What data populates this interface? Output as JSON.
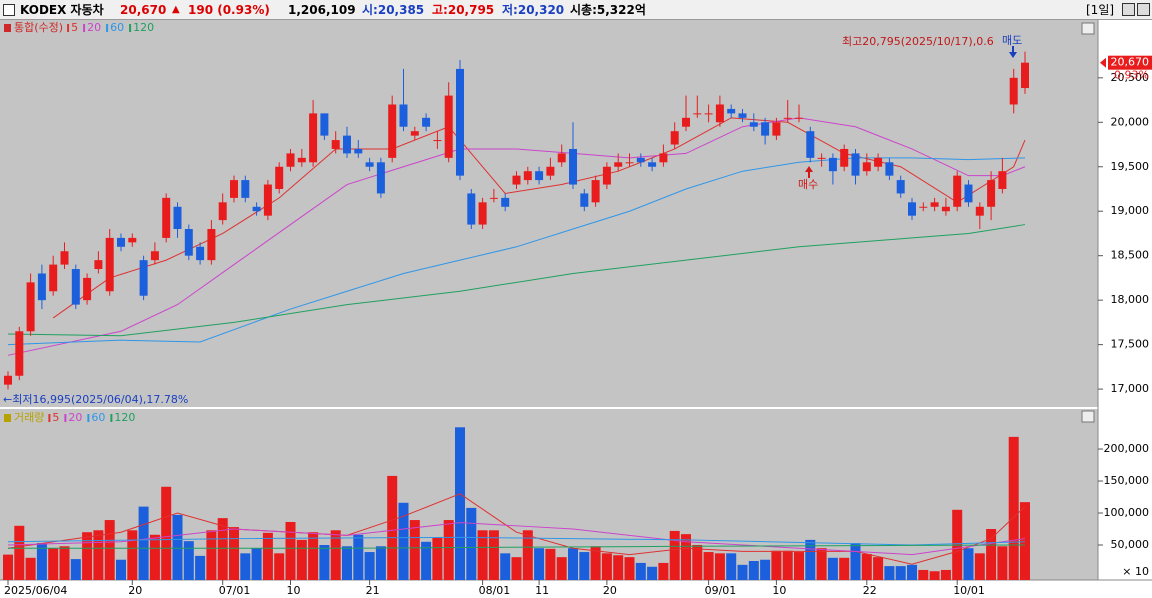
{
  "header": {
    "name": "KODEX 자동차",
    "price": "20,670",
    "arrow": "▲",
    "change": "190 (0.93%)",
    "volume": "1,206,109",
    "open": "시:20,385",
    "high": "고:20,795",
    "low": "저:20,320",
    "cap": "시총:5,322억",
    "period": "[1일]"
  },
  "chart_data": [
    {
      "type": "candlestick",
      "legend_title": "통합(수정)",
      "categories": [
        "2025/06/04",
        null,
        null,
        null,
        null,
        null,
        null,
        null,
        null,
        null,
        null,
        "20",
        null,
        null,
        null,
        null,
        null,
        null,
        null,
        "07/01",
        null,
        null,
        null,
        null,
        null,
        "10",
        null,
        null,
        null,
        null,
        null,
        null,
        "21",
        null,
        null,
        null,
        null,
        null,
        null,
        null,
        null,
        null,
        "08/01",
        null,
        null,
        null,
        null,
        "11",
        null,
        null,
        null,
        null,
        null,
        "20",
        null,
        null,
        null,
        null,
        null,
        null,
        null,
        null,
        "09/01",
        null,
        null,
        null,
        null,
        null,
        "10",
        null,
        null,
        null,
        null,
        null,
        null,
        null,
        "22",
        null,
        null,
        null,
        null,
        null,
        null,
        null,
        "10/01",
        null,
        null,
        null,
        null,
        null,
        null
      ],
      "open": [
        17050,
        17150,
        17650,
        18300,
        18100,
        18400,
        18350,
        18000,
        18350,
        18100,
        18700,
        18650,
        18450,
        18450,
        18700,
        19050,
        18800,
        18600,
        18450,
        18900,
        19150,
        19350,
        19050,
        18950,
        19250,
        19500,
        19550,
        19550,
        20100,
        19700,
        19850,
        19700,
        19550,
        19550,
        19600,
        20200,
        19850,
        20050,
        19800,
        19600,
        20600,
        19200,
        18850,
        19150,
        19150,
        19300,
        19350,
        19450,
        19400,
        19550,
        19700,
        19200,
        19100,
        19300,
        19500,
        19550,
        19600,
        19550,
        19550,
        19750,
        19950,
        20100,
        20100,
        20000,
        20150,
        20100,
        20000,
        20000,
        19850,
        20050,
        20050,
        19900,
        19600,
        19600,
        19500,
        19650,
        19450,
        19500,
        19550,
        19350,
        19100,
        19050,
        19050,
        19000,
        19050,
        19300,
        18950,
        19050,
        19250,
        20200,
        20385
      ],
      "high": [
        17200,
        17700,
        18300,
        18400,
        18500,
        18650,
        18400,
        18300,
        18550,
        18800,
        18750,
        18750,
        18500,
        18650,
        19200,
        19100,
        18850,
        18650,
        18900,
        19200,
        19400,
        19400,
        19100,
        19350,
        19550,
        19700,
        19700,
        20250,
        20100,
        19900,
        19950,
        19800,
        19600,
        19600,
        20300,
        20600,
        19950,
        20100,
        19900,
        20450,
        20700,
        19250,
        19150,
        19250,
        19200,
        19450,
        19500,
        19500,
        19600,
        19750,
        20000,
        19250,
        19400,
        19550,
        19650,
        19650,
        19650,
        19600,
        19750,
        20000,
        20300,
        20300,
        20200,
        20300,
        20200,
        20150,
        20100,
        20050,
        20050,
        20250,
        20200,
        19950,
        19650,
        19650,
        19750,
        19700,
        19650,
        19650,
        19600,
        19400,
        19150,
        19100,
        19150,
        19150,
        19450,
        19350,
        19100,
        19450,
        19600,
        20600,
        20795
      ],
      "low": [
        16995,
        17100,
        17600,
        17900,
        18050,
        18350,
        17900,
        17950,
        18300,
        18050,
        18550,
        18600,
        18000,
        18400,
        18650,
        18700,
        18450,
        18400,
        18400,
        18850,
        19100,
        19100,
        18950,
        18900,
        19200,
        19450,
        19500,
        19500,
        19800,
        19650,
        19600,
        19600,
        19450,
        19150,
        19550,
        19900,
        19800,
        19900,
        19700,
        19550,
        19350,
        18800,
        18800,
        19100,
        19000,
        19250,
        19300,
        19300,
        19350,
        19500,
        19250,
        19000,
        19050,
        19250,
        19450,
        19500,
        19500,
        19450,
        19500,
        19700,
        19900,
        20050,
        20000,
        19950,
        20050,
        20000,
        19900,
        19750,
        19800,
        20000,
        20000,
        19550,
        19500,
        19300,
        19450,
        19300,
        19400,
        19450,
        19350,
        19150,
        18900,
        19000,
        19000,
        18950,
        19000,
        19050,
        18800,
        18900,
        19200,
        20100,
        20320
      ],
      "close": [
        17150,
        17650,
        18200,
        18000,
        18400,
        18550,
        17950,
        18250,
        18450,
        18700,
        18600,
        18700,
        18050,
        18550,
        19150,
        18800,
        18500,
        18450,
        18800,
        19100,
        19350,
        19150,
        19000,
        19300,
        19500,
        19650,
        19600,
        20100,
        19850,
        19800,
        19650,
        19650,
        19500,
        19200,
        20200,
        19950,
        19900,
        19950,
        19800,
        20300,
        19400,
        18850,
        19100,
        19150,
        19050,
        19400,
        19450,
        19350,
        19500,
        19650,
        19300,
        19050,
        19350,
        19500,
        19550,
        19550,
        19550,
        19500,
        19650,
        19900,
        20050,
        20100,
        20100,
        20200,
        20100,
        20050,
        19950,
        19850,
        20000,
        20050,
        20050,
        19600,
        19600,
        19450,
        19700,
        19400,
        19550,
        19600,
        19400,
        19200,
        18950,
        19050,
        19100,
        19050,
        19400,
        19100,
        19050,
        19350,
        19450,
        20500,
        20670
      ],
      "up_color": "#e81c1c",
      "down_color": "#1c5fdc",
      "ylim": [
        16810,
        21150
      ],
      "yticks": [
        {
          "value": 17000,
          "label": "17,000"
        },
        {
          "value": 17500,
          "label": "17,500"
        },
        {
          "value": 18000,
          "label": "18,000"
        },
        {
          "value": 18500,
          "label": "18,500"
        },
        {
          "value": 19000,
          "label": "19,000"
        },
        {
          "value": 19500,
          "label": "19,500"
        },
        {
          "value": 20000,
          "label": "20,000"
        },
        {
          "value": 20500,
          "label": "20,500"
        }
      ],
      "moving_averages": [
        {
          "name": "5",
          "color": "#e03030",
          "x": [
            4,
            9,
            14,
            19,
            24,
            29,
            34,
            39,
            44,
            49,
            54,
            59,
            64,
            69,
            74,
            79,
            84,
            89,
            90
          ],
          "values": [
            17800,
            18250,
            18450,
            18750,
            19150,
            19700,
            19700,
            19950,
            19200,
            19300,
            19450,
            19700,
            20050,
            20000,
            19650,
            19500,
            19100,
            19500,
            19800
          ]
        },
        {
          "name": "20",
          "color": "#cc44cc",
          "x": [
            0,
            10,
            15,
            20,
            25,
            30,
            35,
            40,
            45,
            50,
            55,
            60,
            65,
            70,
            75,
            80,
            85,
            88,
            90
          ],
          "values": [
            17380,
            17650,
            17950,
            18400,
            18850,
            19300,
            19500,
            19700,
            19700,
            19650,
            19600,
            19650,
            19950,
            20050,
            19950,
            19700,
            19400,
            19400,
            19500
          ]
        },
        {
          "name": "60",
          "color": "#2f96e8",
          "x": [
            0,
            10,
            17,
            25,
            30,
            35,
            40,
            45,
            50,
            55,
            60,
            65,
            70,
            75,
            80,
            85,
            90
          ],
          "values": [
            17500,
            17550,
            17530,
            17900,
            18100,
            18300,
            18450,
            18600,
            18800,
            19000,
            19250,
            19450,
            19550,
            19600,
            19600,
            19580,
            19600
          ]
        },
        {
          "name": "120",
          "color": "#1fa060",
          "x": [
            0,
            10,
            20,
            30,
            40,
            50,
            60,
            70,
            80,
            85,
            90
          ],
          "values": [
            17620,
            17600,
            17750,
            17950,
            18100,
            18300,
            18450,
            18600,
            18700,
            18750,
            18850
          ]
        }
      ],
      "annotations": {
        "high": "최고20,795(2025/10/17),0.6",
        "low": "←최저16,995(2025/06/04),17.78%",
        "buy": "매수",
        "sell": "매도"
      },
      "last_price_label": "20,670",
      "last_change_label": "0.93%"
    },
    {
      "type": "bar",
      "legend_title": "거래량",
      "values": [
        35000,
        80000,
        30000,
        53000,
        45000,
        48000,
        28000,
        70000,
        73000,
        89000,
        27000,
        73000,
        110000,
        66000,
        141000,
        97000,
        56000,
        33000,
        73000,
        92000,
        78000,
        37000,
        45000,
        69000,
        37000,
        86000,
        58000,
        70000,
        50000,
        73000,
        48000,
        66000,
        39000,
        48000,
        158000,
        116000,
        89000,
        55000,
        61000,
        89000,
        234000,
        108000,
        73000,
        73000,
        37000,
        31000,
        73000,
        45000,
        44000,
        31000,
        45000,
        39000,
        48000,
        37000,
        34000,
        31000,
        22000,
        16000,
        22000,
        72000,
        67000,
        50000,
        39000,
        37000,
        37000,
        19000,
        25000,
        27000,
        41000,
        41000,
        39000,
        58000,
        45000,
        30000,
        30000,
        53000,
        36000,
        31000,
        17000,
        17000,
        19000,
        11000,
        9000,
        11000,
        105000,
        45000,
        37000,
        75000,
        48000,
        219000,
        117000
      ],
      "ylim": [
        0,
        261000
      ],
      "yticks": [
        {
          "value": 50000,
          "label": "50,000"
        },
        {
          "value": 100000,
          "label": "100,000"
        },
        {
          "value": 150000,
          "label": "150,000"
        },
        {
          "value": 200000,
          "label": "200,000"
        }
      ],
      "unit_label": "× 10",
      "moving_averages": [
        {
          "name": "5",
          "color": "#e03030",
          "x": [
            0,
            10,
            15,
            20,
            30,
            35,
            40,
            45,
            50,
            55,
            60,
            65,
            70,
            75,
            80,
            84,
            87,
            90
          ],
          "values": [
            45000,
            70000,
            100000,
            75000,
            65000,
            95000,
            130000,
            70000,
            45000,
            35000,
            45000,
            40000,
            40000,
            40000,
            20000,
            40000,
            60000,
            110000
          ]
        },
        {
          "name": "20",
          "color": "#cc44cc",
          "x": [
            0,
            10,
            20,
            30,
            40,
            45,
            50,
            60,
            70,
            80,
            90
          ],
          "values": [
            50000,
            55000,
            75000,
            65000,
            85000,
            80000,
            75000,
            55000,
            45000,
            35000,
            60000
          ]
        },
        {
          "name": "60",
          "color": "#2f96e8",
          "x": [
            0,
            20,
            40,
            60,
            80,
            90
          ],
          "values": [
            55000,
            60000,
            62000,
            58000,
            50000,
            55000
          ]
        },
        {
          "name": "120",
          "color": "#1fa060",
          "x": [
            0,
            30,
            60,
            90
          ],
          "values": [
            45000,
            45000,
            48000,
            50000
          ]
        }
      ]
    }
  ]
}
